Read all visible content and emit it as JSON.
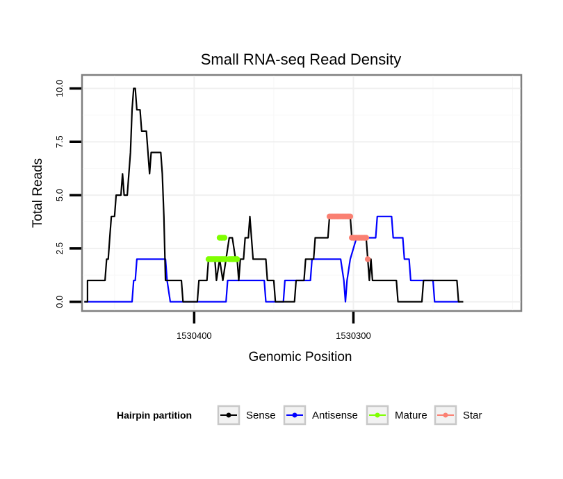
{
  "chart_data": {
    "type": "line",
    "title": "Small RNA-seq Read Density",
    "xlabel": "Genomic Position",
    "ylabel": "Total Reads",
    "x_reversed": true,
    "xlim": [
      1530470,
      1530195
    ],
    "ylim": [
      -0.4,
      10.6
    ],
    "x_ticks": [
      {
        "value": 1530400,
        "label": "1530400"
      },
      {
        "value": 1530300,
        "label": "1530300"
      }
    ],
    "y_ticks": [
      {
        "value": 0,
        "label": "0.0"
      },
      {
        "value": 2.5,
        "label": "2.5"
      },
      {
        "value": 5,
        "label": "5.0"
      },
      {
        "value": 7.5,
        "label": "7.5"
      },
      {
        "value": 10,
        "label": "10.0"
      }
    ],
    "grid": true,
    "legend": {
      "title": "Hairpin partition",
      "position": "bottom",
      "entries": [
        "Sense",
        "Antisense",
        "Mature",
        "Star"
      ]
    },
    "series": [
      {
        "name": "Sense",
        "color": "#000000",
        "style": "line",
        "points": [
          [
            1530469,
            0
          ],
          [
            1530467,
            0
          ],
          [
            1530467,
            1
          ],
          [
            1530456,
            1
          ],
          [
            1530455,
            2
          ],
          [
            1530454,
            2
          ],
          [
            1530453,
            3
          ],
          [
            1530452,
            4
          ],
          [
            1530450,
            4
          ],
          [
            1530449,
            5
          ],
          [
            1530446,
            5
          ],
          [
            1530445,
            6
          ],
          [
            1530444,
            5
          ],
          [
            1530442,
            5
          ],
          [
            1530440,
            7
          ],
          [
            1530439,
            9
          ],
          [
            1530438,
            10
          ],
          [
            1530437,
            10
          ],
          [
            1530436,
            9
          ],
          [
            1530434,
            9
          ],
          [
            1530433,
            8
          ],
          [
            1530430,
            8
          ],
          [
            1530429,
            7
          ],
          [
            1530428,
            6
          ],
          [
            1530427,
            7
          ],
          [
            1530421,
            7
          ],
          [
            1530420,
            6
          ],
          [
            1530419,
            4
          ],
          [
            1530418,
            1
          ],
          [
            1530408,
            1
          ],
          [
            1530407,
            0
          ],
          [
            1530398,
            0
          ],
          [
            1530397,
            1
          ],
          [
            1530392,
            1
          ],
          [
            1530391,
            2
          ],
          [
            1530387,
            2
          ],
          [
            1530386,
            1
          ],
          [
            1530384,
            2
          ],
          [
            1530382,
            1
          ],
          [
            1530380,
            2
          ],
          [
            1530378,
            3
          ],
          [
            1530376,
            3
          ],
          [
            1530374,
            2
          ],
          [
            1530373,
            2
          ],
          [
            1530372,
            1
          ],
          [
            1530371,
            2
          ],
          [
            1530369,
            2
          ],
          [
            1530368,
            3
          ],
          [
            1530366,
            3
          ],
          [
            1530365,
            4
          ],
          [
            1530364,
            3
          ],
          [
            1530363,
            2
          ],
          [
            1530355,
            2
          ],
          [
            1530354,
            1
          ],
          [
            1530350,
            1
          ],
          [
            1530349,
            0
          ],
          [
            1530337,
            0
          ],
          [
            1530336,
            1
          ],
          [
            1530331,
            1
          ],
          [
            1530330,
            2
          ],
          [
            1530325,
            2
          ],
          [
            1530324,
            3
          ],
          [
            1530316,
            3
          ],
          [
            1530315,
            4
          ],
          [
            1530302,
            4
          ],
          [
            1530301,
            3
          ],
          [
            1530292,
            3
          ],
          [
            1530291,
            2
          ],
          [
            1530290,
            1
          ],
          [
            1530289,
            2
          ],
          [
            1530288,
            1
          ],
          [
            1530273,
            1
          ],
          [
            1530272,
            0
          ],
          [
            1530257,
            0
          ],
          [
            1530256,
            1
          ],
          [
            1530235,
            1
          ],
          [
            1530234,
            0
          ],
          [
            1530231,
            0
          ]
        ]
      },
      {
        "name": "Antisense",
        "color": "#0000ff",
        "style": "line",
        "points": [
          [
            1530469,
            0
          ],
          [
            1530439,
            0
          ],
          [
            1530438,
            1
          ],
          [
            1530437,
            1
          ],
          [
            1530436,
            2
          ],
          [
            1530418,
            2
          ],
          [
            1530417,
            1
          ],
          [
            1530415,
            0
          ],
          [
            1530380,
            0
          ],
          [
            1530379,
            1
          ],
          [
            1530356,
            1
          ],
          [
            1530355,
            0
          ],
          [
            1530344,
            0
          ],
          [
            1530343,
            1
          ],
          [
            1530327,
            1
          ],
          [
            1530326,
            2
          ],
          [
            1530308,
            2
          ],
          [
            1530306,
            1
          ],
          [
            1530305,
            0
          ],
          [
            1530304,
            1
          ],
          [
            1530302,
            2
          ],
          [
            1530298,
            3
          ],
          [
            1530286,
            3
          ],
          [
            1530285,
            4
          ],
          [
            1530276,
            4
          ],
          [
            1530275,
            3
          ],
          [
            1530269,
            3
          ],
          [
            1530268,
            2
          ],
          [
            1530265,
            2
          ],
          [
            1530264,
            1
          ],
          [
            1530250,
            1
          ],
          [
            1530249,
            0
          ],
          [
            1530233,
            0
          ]
        ]
      },
      {
        "name": "Mature",
        "color": "#7fff00",
        "style": "points",
        "points": [
          [
            1530391,
            2
          ],
          [
            1530390,
            2
          ],
          [
            1530389,
            2
          ],
          [
            1530388,
            2
          ],
          [
            1530387,
            2
          ],
          [
            1530386,
            2
          ],
          [
            1530385,
            2
          ],
          [
            1530384,
            2
          ],
          [
            1530383,
            2
          ],
          [
            1530382,
            2
          ],
          [
            1530381,
            2
          ],
          [
            1530380,
            2
          ],
          [
            1530384,
            3
          ],
          [
            1530383,
            3
          ],
          [
            1530382,
            3
          ],
          [
            1530381,
            3
          ],
          [
            1530378,
            2
          ],
          [
            1530377,
            2
          ],
          [
            1530376,
            2
          ],
          [
            1530375,
            2
          ],
          [
            1530374,
            2
          ],
          [
            1530373,
            2
          ]
        ]
      },
      {
        "name": "Star",
        "color": "#fa8072",
        "style": "points",
        "points": [
          [
            1530315,
            4
          ],
          [
            1530314,
            4
          ],
          [
            1530313,
            4
          ],
          [
            1530312,
            4
          ],
          [
            1530311,
            4
          ],
          [
            1530310,
            4
          ],
          [
            1530309,
            4
          ],
          [
            1530308,
            4
          ],
          [
            1530307,
            4
          ],
          [
            1530306,
            4
          ],
          [
            1530305,
            4
          ],
          [
            1530304,
            4
          ],
          [
            1530303,
            4
          ],
          [
            1530302,
            4
          ],
          [
            1530301,
            3
          ],
          [
            1530300,
            3
          ],
          [
            1530299,
            3
          ],
          [
            1530298,
            3
          ],
          [
            1530297,
            3
          ],
          [
            1530296,
            3
          ],
          [
            1530295,
            3
          ],
          [
            1530294,
            3
          ],
          [
            1530293,
            3
          ],
          [
            1530292,
            3
          ],
          [
            1530291,
            2
          ]
        ]
      }
    ]
  }
}
